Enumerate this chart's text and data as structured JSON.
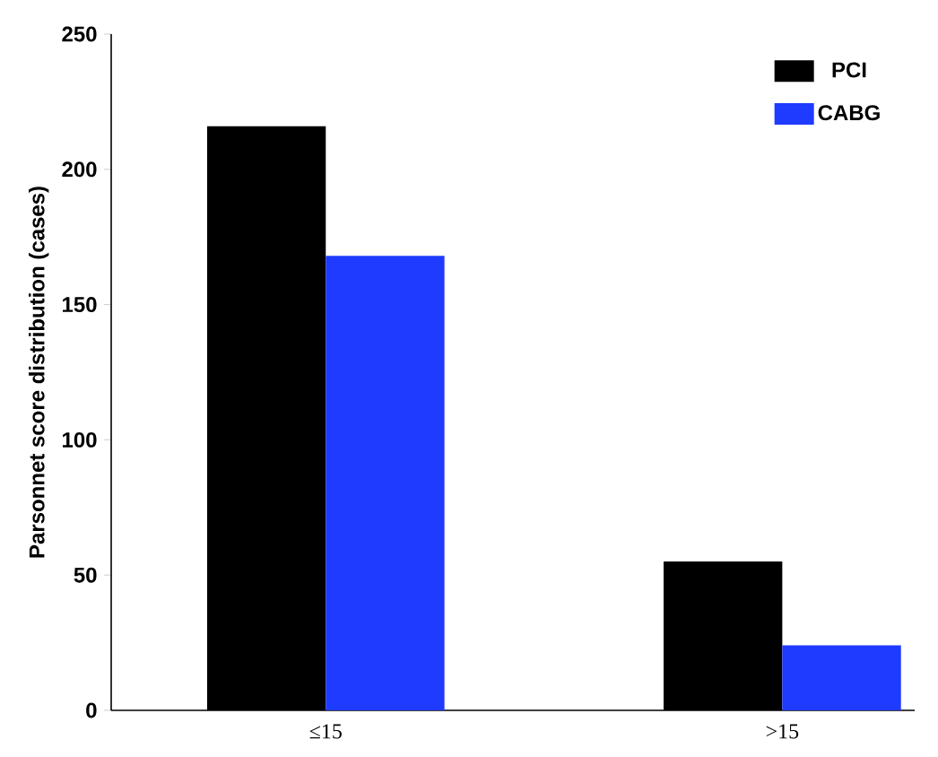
{
  "chart_data": {
    "type": "bar",
    "ylabel": "Parsonnet score distribution (cases)",
    "categories": [
      "≤15",
      ">15"
    ],
    "series": [
      {
        "name": "PCI",
        "color": "#000000",
        "values": [
          216,
          55
        ]
      },
      {
        "name": "CABG",
        "color": "#1f3bff",
        "values": [
          168,
          24
        ]
      }
    ],
    "ylim": [
      0,
      250
    ],
    "yticks": [
      0,
      50,
      100,
      150,
      200,
      250
    ],
    "grid": false,
    "legend": "top right"
  }
}
